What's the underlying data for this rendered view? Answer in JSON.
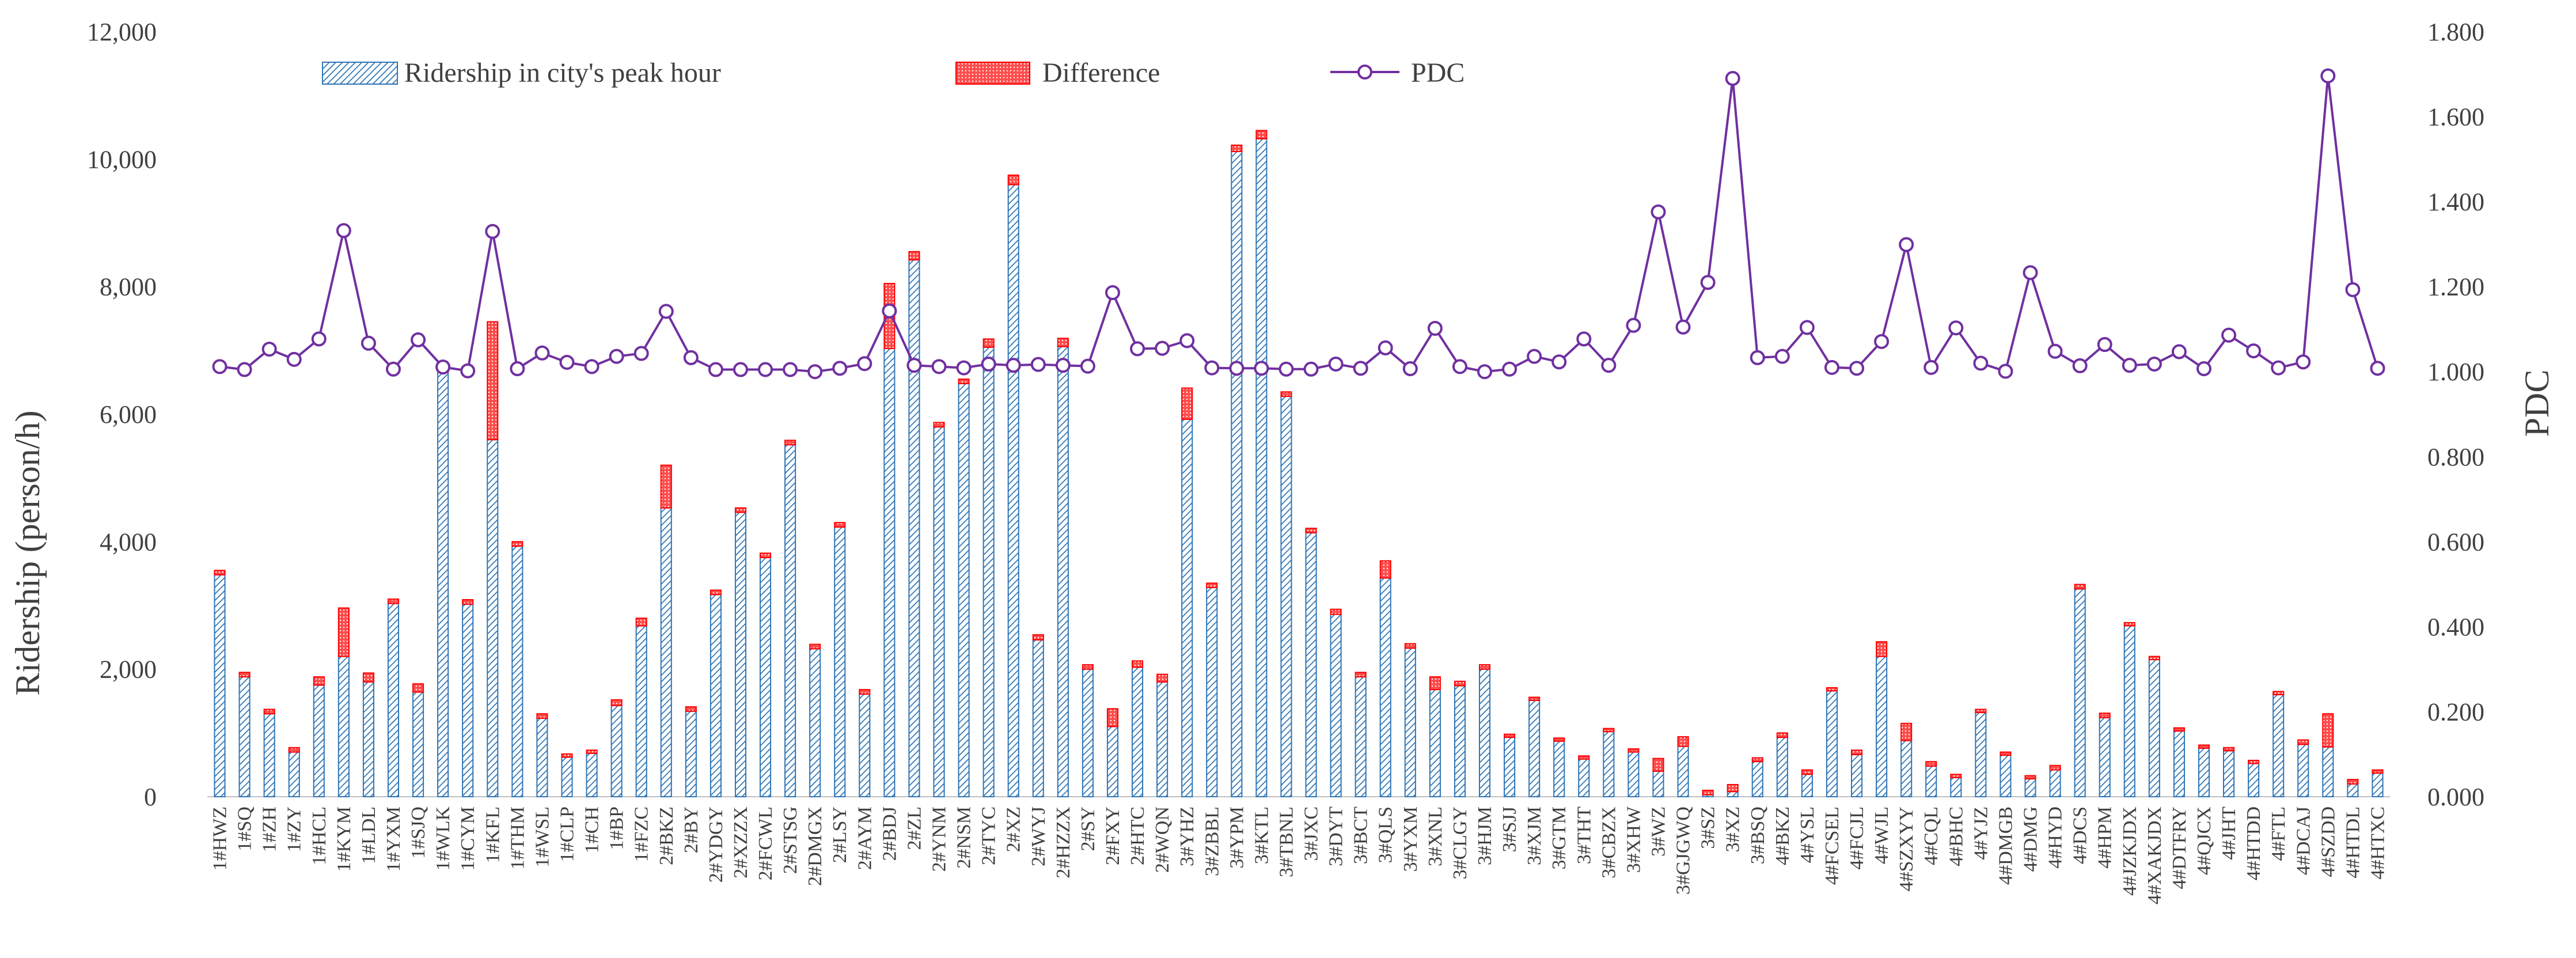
{
  "chart_data": {
    "type": "bar",
    "subtype": "stacked bar with secondary-axis line",
    "title": "",
    "ylabel": "Ridership (person/h)",
    "y2label": "PDC",
    "ylim": [
      0,
      12000
    ],
    "y2lim": [
      0,
      1.8
    ],
    "y_ticks": [
      "0",
      "2,000",
      "4,000",
      "6,000",
      "8,000",
      "10,000",
      "12,000"
    ],
    "y2_ticks": [
      "0.000",
      "0.200",
      "0.400",
      "0.600",
      "0.800",
      "1.000",
      "1.200",
      "1.400",
      "1.600",
      "1.800"
    ],
    "grid": false,
    "legend_position": "top",
    "categories": [
      "1#HWZ",
      "1#SQ",
      "1#ZH",
      "1#ZY",
      "1#HCL",
      "1#KYM",
      "1#LDL",
      "1#YXM",
      "1#SJQ",
      "1#WLK",
      "1#CYM",
      "1#KFL",
      "1#THM",
      "1#WSL",
      "1#CLP",
      "1#CH",
      "1#BP",
      "1#FZC",
      "2#BKZ",
      "2#BY",
      "2#YDGY",
      "2#XZZX",
      "2#FCWL",
      "2#STSG",
      "2#DMGX",
      "2#LSY",
      "2#AYM",
      "2#BDJ",
      "2#ZL",
      "2#YNM",
      "2#NSM",
      "2#TYC",
      "2#XZ",
      "2#WYJ",
      "2#HZZX",
      "2#SY",
      "2#FXY",
      "2#HTC",
      "2#WQN",
      "3#YHZ",
      "3#ZBBL",
      "3#YPM",
      "3#KTL",
      "3#TBNL",
      "3#JXC",
      "3#DYT",
      "3#BCT",
      "3#QLS",
      "3#YXM",
      "3#XNL",
      "3#CLGY",
      "3#HJM",
      "3#SJJ",
      "3#XJM",
      "3#GTM",
      "3#THT",
      "3#CBZX",
      "3#XHW",
      "3#WZ",
      "3#GJGWQ",
      "3#SZ",
      "3#XZ",
      "3#BSQ",
      "4#BKZ",
      "4#YSL",
      "4#FCSEL",
      "4#FCJL",
      "4#WJL",
      "4#SZXYY",
      "4#CQL",
      "4#BHC",
      "4#YJZ",
      "4#DMGB",
      "4#DMG",
      "4#HYD",
      "4#DCS",
      "4#HPM",
      "4#JZKJDX",
      "4#XAKJDX",
      "4#DTFRY",
      "4#QJCX",
      "4#JHT",
      "4#HTDD",
      "4#FTL",
      "4#DCAJ",
      "4#SZDD",
      "4#HTDL",
      "4#HTXC"
    ],
    "series": [
      {
        "name": "Ridership in city's peak hour",
        "type": "bar",
        "axis": "left",
        "color": "#2E75B6",
        "values": [
          3480,
          1880,
          1300,
          700,
          1750,
          2200,
          1800,
          3030,
          1640,
          6660,
          3020,
          5600,
          3930,
          1230,
          620,
          680,
          1430,
          2680,
          4530,
          1340,
          3170,
          4460,
          3750,
          5520,
          2320,
          4230,
          1610,
          7030,
          8420,
          5800,
          6480,
          7050,
          9600,
          2460,
          7060,
          2000,
          1100,
          2030,
          1800,
          5920,
          3280,
          10120,
          10320,
          6280,
          4140,
          2860,
          1880,
          3430,
          2330,
          1680,
          1740,
          2000,
          930,
          1510,
          870,
          590,
          1020,
          700,
          400,
          790,
          30,
          80,
          550,
          930,
          350,
          1660,
          660,
          2200,
          880,
          480,
          300,
          1320,
          650,
          280,
          420,
          3260,
          1240,
          2680,
          2150,
          1030,
          760,
          720,
          520,
          1600,
          820,
          780,
          200,
          370
        ]
      },
      {
        "name": "Difference",
        "type": "bar",
        "axis": "left",
        "color": "#FF0000",
        "values": [
          70,
          70,
          70,
          70,
          130,
          760,
          140,
          70,
          130,
          70,
          70,
          1850,
          70,
          70,
          50,
          50,
          90,
          120,
          670,
          70,
          70,
          70,
          70,
          70,
          70,
          70,
          70,
          1020,
          130,
          70,
          70,
          130,
          150,
          80,
          130,
          70,
          280,
          100,
          120,
          490,
          70,
          100,
          130,
          70,
          70,
          80,
          70,
          270,
          70,
          200,
          70,
          70,
          50,
          50,
          50,
          50,
          50,
          50,
          200,
          150,
          70,
          110,
          60,
          70,
          70,
          50,
          70,
          230,
          270,
          70,
          50,
          50,
          50,
          50,
          70,
          70,
          70,
          50,
          50,
          50,
          50,
          50,
          50,
          50,
          70,
          520,
          70,
          50
        ]
      },
      {
        "name": "PDC",
        "type": "line",
        "axis": "right",
        "color": "#7030A0",
        "values": [
          1.012,
          1.005,
          1.053,
          1.029,
          1.077,
          1.332,
          1.067,
          1.006,
          1.075,
          1.011,
          1.002,
          1.33,
          1.007,
          1.044,
          1.022,
          1.012,
          1.036,
          1.043,
          1.142,
          1.033,
          1.005,
          1.005,
          1.005,
          1.005,
          1.0,
          1.008,
          1.019,
          1.143,
          1.015,
          1.012,
          1.009,
          1.018,
          1.015,
          1.017,
          1.015,
          1.013,
          1.186,
          1.054,
          1.055,
          1.073,
          1.009,
          1.008,
          1.008,
          1.006,
          1.006,
          1.018,
          1.008,
          1.056,
          1.007,
          1.102,
          1.012,
          1.0,
          1.006,
          1.036,
          1.023,
          1.077,
          1.015,
          1.109,
          1.376,
          1.105,
          1.21,
          1.69,
          1.033,
          1.036,
          1.104,
          1.01,
          1.008,
          1.071,
          1.299,
          1.01,
          1.103,
          1.02,
          1.001,
          1.233,
          1.048,
          1.014,
          1.064,
          1.015,
          1.018,
          1.047,
          1.007,
          1.086,
          1.049,
          1.009,
          1.023,
          1.696,
          1.193,
          1.008
        ]
      }
    ]
  }
}
